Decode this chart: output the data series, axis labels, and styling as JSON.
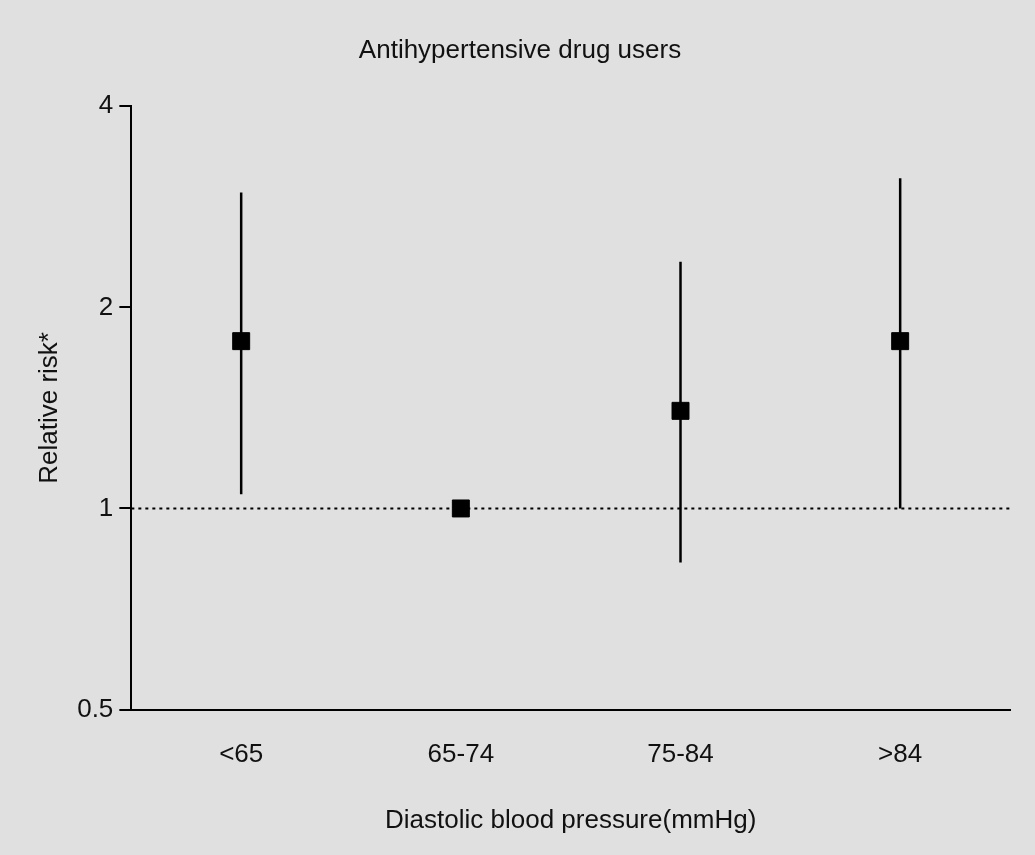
{
  "chart_data": {
    "type": "scatter",
    "title": "Antihypertensive drug users",
    "xlabel": "Diastolic blood pressure(mmHg)",
    "ylabel": "Relative risk*",
    "categories": [
      "<65",
      "65-74",
      "75-84",
      ">84"
    ],
    "values": [
      1.78,
      1,
      1.4,
      1.78
    ],
    "errors": [
      [
        1.05,
        2.97
      ],
      null,
      [
        0.83,
        2.34
      ],
      [
        1,
        3.12
      ]
    ],
    "color": "#000000",
    "marker": "square",
    "log": "y",
    "ylim": [
      0.5,
      4
    ],
    "yticks": [
      0.5,
      1,
      2,
      4
    ],
    "grid": false,
    "legend": false,
    "ref_lines": [
      {
        "axis": "y",
        "value": 1,
        "line_style": "dotted",
        "color": "#000000"
      }
    ]
  }
}
